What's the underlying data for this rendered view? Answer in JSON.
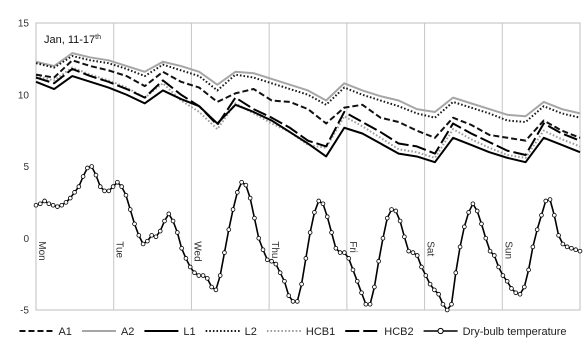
{
  "chart_data": {
    "type": "line",
    "title": "Jan, 11-17",
    "title_superscript": "th",
    "xlabel": "",
    "ylabel": "",
    "ylim": [
      -5,
      15
    ],
    "yticks": [
      -5,
      0,
      5,
      10,
      15
    ],
    "xlim": [
      0,
      168
    ],
    "days": [
      {
        "label": "Mon",
        "x": 0
      },
      {
        "label": "Tue",
        "x": 24
      },
      {
        "label": "Wed",
        "x": 48
      },
      {
        "label": "Thu",
        "x": 72
      },
      {
        "label": "Fri",
        "x": 96
      },
      {
        "label": "Sat",
        "x": 120
      },
      {
        "label": "Sun",
        "x": 144
      }
    ],
    "grid": {
      "vertical": true,
      "horizontal": false
    },
    "legend_position": "bottom",
    "series": [
      {
        "name": "A1",
        "style": "dash",
        "color": "#111111",
        "values": [
          11.4,
          11.2,
          12.4,
          12.0,
          11.7,
          11.3,
          10.6,
          11.6,
          10.9,
          10.5,
          9.5,
          10.1,
          10.4,
          9.6,
          9.5,
          9.0,
          8.0,
          9.1,
          9.3,
          8.4,
          8.1,
          7.5,
          7.0,
          8.4,
          7.9,
          7.2,
          7.0,
          6.8,
          8.2,
          7.5,
          7.0
        ]
      },
      {
        "name": "A2",
        "style": "solid",
        "color": "#a6a6a6",
        "values": [
          12.3,
          12.0,
          12.9,
          12.6,
          12.4,
          12.0,
          11.6,
          12.3,
          12.0,
          11.6,
          10.7,
          11.6,
          11.5,
          11.1,
          10.7,
          10.3,
          9.6,
          10.8,
          10.3,
          9.9,
          9.6,
          9.0,
          8.8,
          9.8,
          9.4,
          9.0,
          8.6,
          8.5,
          9.5,
          9.0,
          8.7
        ]
      },
      {
        "name": "L1",
        "style": "solid",
        "color": "#000000",
        "values": [
          10.9,
          10.4,
          11.3,
          10.9,
          10.5,
          10.0,
          9.4,
          10.3,
          9.7,
          9.2,
          8.0,
          9.3,
          8.8,
          8.2,
          7.4,
          6.6,
          5.7,
          7.7,
          7.3,
          6.6,
          5.9,
          5.7,
          5.3,
          7.0,
          6.5,
          6.0,
          5.6,
          5.3,
          7.0,
          6.5,
          6.0
        ]
      },
      {
        "name": "L2",
        "style": "dot",
        "color": "#1a1a1a",
        "values": [
          12.2,
          11.9,
          12.7,
          12.4,
          12.2,
          11.8,
          11.3,
          12.1,
          11.7,
          11.3,
          10.3,
          11.4,
          11.2,
          10.8,
          10.4,
          10.0,
          9.3,
          10.5,
          10.0,
          9.6,
          9.2,
          8.7,
          8.4,
          9.5,
          9.1,
          8.7,
          8.2,
          8.1,
          9.2,
          8.7,
          8.4
        ]
      },
      {
        "name": "HCB1",
        "style": "dot",
        "color": "#9e9e9e",
        "values": [
          11.3,
          11.0,
          11.9,
          11.4,
          11.0,
          10.5,
          9.8,
          10.8,
          9.6,
          8.8,
          7.6,
          9.4,
          8.7,
          8.0,
          7.4,
          6.5,
          6.3,
          8.5,
          7.8,
          7.0,
          6.2,
          6.0,
          5.6,
          7.6,
          6.9,
          6.3,
          5.8,
          5.6,
          7.5,
          6.9,
          6.4
        ]
      },
      {
        "name": "HCB2",
        "style": "longdash",
        "color": "#000000",
        "values": [
          11.2,
          10.8,
          11.8,
          11.3,
          10.9,
          10.4,
          9.8,
          11.0,
          10.0,
          9.2,
          7.9,
          9.8,
          9.0,
          8.4,
          7.7,
          6.8,
          6.4,
          8.8,
          8.1,
          7.4,
          6.6,
          6.4,
          5.9,
          8.0,
          7.3,
          6.7,
          6.1,
          5.8,
          8.0,
          7.3,
          6.8
        ]
      },
      {
        "name": "Dry-bulb temperature",
        "style": "marker",
        "color": "#000000",
        "values": [
          2.3,
          2.4,
          2.6,
          2.4,
          2.3,
          2.2,
          2.3,
          2.5,
          2.8,
          3.2,
          3.6,
          4.3,
          4.9,
          5.0,
          4.4,
          3.6,
          3.3,
          3.3,
          3.6,
          3.9,
          3.6,
          3.0,
          2.0,
          1.0,
          0.2,
          -0.4,
          -0.2,
          0.2,
          0.1,
          0.5,
          1.2,
          1.7,
          1.2,
          0.4,
          -0.7,
          -1.4,
          -2.0,
          -2.4,
          -2.6,
          -2.6,
          -2.8,
          -3.4,
          -3.6,
          -2.6,
          -1.0,
          0.6,
          2.0,
          3.2,
          3.9,
          3.7,
          2.8,
          1.4,
          0.0,
          -0.8,
          -1.5,
          -1.6,
          -1.8,
          -2.4,
          -3.0,
          -4.0,
          -4.4,
          -4.4,
          -3.2,
          -1.4,
          0.4,
          1.8,
          2.6,
          2.4,
          1.5,
          0.4,
          -0.7,
          -1.0,
          -1.0,
          -1.4,
          -2.2,
          -3.0,
          -3.8,
          -4.6,
          -4.6,
          -3.4,
          -1.6,
          0.0,
          1.4,
          2.0,
          1.9,
          1.2,
          0.1,
          -0.9,
          -1.0,
          -1.2,
          -2.0,
          -2.6,
          -3.2,
          -3.6,
          -3.9,
          -4.6,
          -5.0,
          -4.6,
          -2.4,
          -0.6,
          0.8,
          1.8,
          2.4,
          1.9,
          1.0,
          0.0,
          -0.9,
          -1.2,
          -2.0,
          -2.6,
          -3.0,
          -3.5,
          -3.8,
          -3.9,
          -3.4,
          -2.2,
          -0.6,
          0.6,
          1.6,
          2.6,
          2.7,
          1.6,
          0.2,
          -0.4,
          -0.6,
          -0.7,
          -0.8,
          -0.9
        ]
      }
    ]
  }
}
